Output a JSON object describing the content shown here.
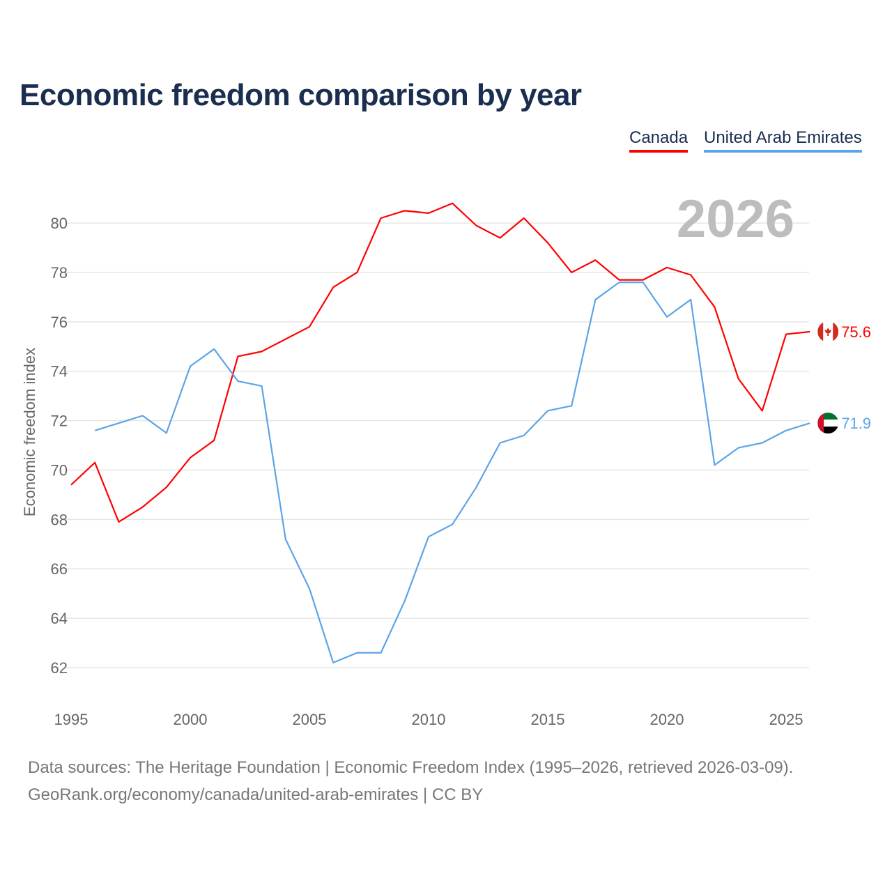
{
  "chart_data": {
    "type": "line",
    "title": "Economic freedom comparison by year",
    "xlabel": "",
    "ylabel": "Economic freedom index",
    "xlim": [
      1995,
      2026
    ],
    "ylim": [
      61,
      82
    ],
    "xticks": [
      1995,
      2000,
      2005,
      2010,
      2015,
      2020,
      2025
    ],
    "yticks": [
      62,
      64,
      66,
      68,
      70,
      72,
      74,
      76,
      78,
      80
    ],
    "grid": true,
    "legend_position": "top-right",
    "year_label": "2026",
    "series": [
      {
        "name": "Canada",
        "color": "#ff0000",
        "end_label": "75.6",
        "icon": "canada-flag-icon",
        "x": [
          1995,
          1996,
          1997,
          1998,
          1999,
          2000,
          2001,
          2002,
          2003,
          2004,
          2005,
          2006,
          2007,
          2008,
          2009,
          2010,
          2011,
          2012,
          2013,
          2014,
          2015,
          2016,
          2017,
          2018,
          2019,
          2020,
          2021,
          2022,
          2023,
          2024,
          2025,
          2026
        ],
        "values": [
          69.4,
          70.3,
          67.9,
          68.5,
          69.3,
          70.5,
          71.2,
          74.6,
          74.8,
          75.3,
          75.8,
          77.4,
          78.0,
          80.2,
          80.5,
          80.4,
          80.8,
          79.9,
          79.4,
          80.2,
          79.2,
          78.0,
          78.5,
          77.7,
          77.7,
          78.2,
          77.9,
          76.6,
          73.7,
          72.4,
          75.5,
          75.6
        ]
      },
      {
        "name": "United Arab Emirates",
        "color": "#5ba4e8",
        "end_label": "71.9",
        "icon": "uae-flag-icon",
        "x": [
          1996,
          1997,
          1998,
          1999,
          2000,
          2001,
          2002,
          2003,
          2004,
          2005,
          2006,
          2007,
          2008,
          2009,
          2010,
          2011,
          2012,
          2013,
          2014,
          2015,
          2016,
          2017,
          2018,
          2019,
          2020,
          2021,
          2022,
          2023,
          2024,
          2025,
          2026
        ],
        "values": [
          71.6,
          71.9,
          72.2,
          71.5,
          74.2,
          74.9,
          73.6,
          73.4,
          67.2,
          65.2,
          62.2,
          62.6,
          62.6,
          64.7,
          67.3,
          67.8,
          69.3,
          71.1,
          71.4,
          72.4,
          72.6,
          76.9,
          77.6,
          77.6,
          76.2,
          76.9,
          70.2,
          70.9,
          71.1,
          71.6,
          71.9
        ]
      }
    ]
  },
  "footer": {
    "line1": "Data sources: The Heritage Foundation | Economic Freedom Index (1995–2026, retrieved 2026-03-09).",
    "line2": "GeoRank.org/economy/canada/united-arab-emirates | CC BY"
  }
}
